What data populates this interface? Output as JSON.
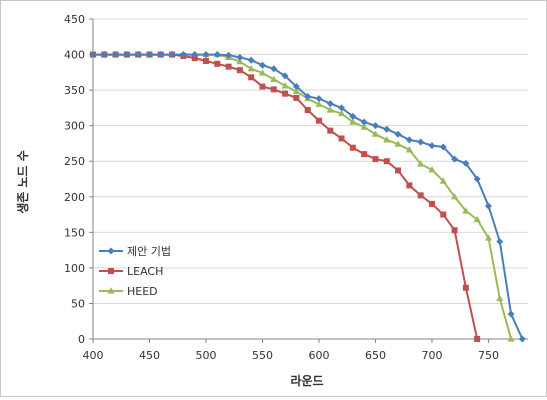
{
  "chart_data": {
    "type": "line",
    "xlabel": "라운드",
    "ylabel": "생존 노드 수",
    "xlim": [
      400,
      785
    ],
    "ylim": [
      0,
      450
    ],
    "x_ticks": [
      400,
      450,
      500,
      550,
      600,
      650,
      700,
      750
    ],
    "y_ticks": [
      0,
      50,
      100,
      150,
      200,
      250,
      300,
      350,
      400,
      450
    ],
    "grid": "horizontal",
    "legend": "left-middle",
    "series": [
      {
        "name": "제안 기법",
        "color": "#4a7ebb",
        "marker": "diamond",
        "x": [
          400,
          410,
          420,
          430,
          440,
          450,
          460,
          470,
          480,
          490,
          500,
          510,
          520,
          530,
          540,
          550,
          560,
          570,
          580,
          590,
          600,
          610,
          620,
          630,
          640,
          650,
          660,
          670,
          680,
          690,
          700,
          710,
          720,
          730,
          740,
          750,
          760,
          770,
          780
        ],
        "values": [
          400,
          400,
          400,
          400,
          400,
          400,
          400,
          400,
          400,
          400,
          400,
          400,
          399,
          396,
          392,
          385,
          380,
          370,
          355,
          341,
          338,
          331,
          325,
          313,
          305,
          300,
          295,
          288,
          280,
          277,
          272,
          270,
          253,
          247,
          225,
          187,
          137,
          35,
          0
        ]
      },
      {
        "name": "LEACH",
        "color": "#c0504d",
        "marker": "square",
        "x": [
          400,
          410,
          420,
          430,
          440,
          450,
          460,
          470,
          480,
          490,
          500,
          510,
          520,
          530,
          540,
          550,
          560,
          570,
          580,
          590,
          600,
          610,
          620,
          630,
          640,
          650,
          660,
          670,
          680,
          690,
          700,
          710,
          720,
          730,
          740
        ],
        "values": [
          400,
          400,
          400,
          400,
          400,
          400,
          400,
          400,
          398,
          395,
          391,
          387,
          383,
          378,
          368,
          355,
          351,
          345,
          339,
          322,
          307,
          293,
          282,
          269,
          260,
          253,
          250,
          237,
          216,
          202,
          190,
          175,
          153,
          72,
          0
        ]
      },
      {
        "name": "HEED",
        "color": "#9bbb59",
        "marker": "triangle",
        "x": [
          400,
          410,
          420,
          430,
          440,
          450,
          460,
          470,
          480,
          490,
          500,
          510,
          520,
          530,
          540,
          550,
          560,
          570,
          580,
          590,
          600,
          610,
          620,
          630,
          640,
          650,
          660,
          670,
          680,
          690,
          700,
          710,
          720,
          730,
          740,
          750,
          760,
          770
        ],
        "values": [
          400,
          400,
          400,
          400,
          400,
          400,
          400,
          400,
          400,
          400,
          400,
          400,
          396,
          390,
          380,
          374,
          365,
          356,
          348,
          338,
          330,
          322,
          317,
          305,
          298,
          288,
          280,
          274,
          266,
          246,
          238,
          222,
          200,
          180,
          168,
          142,
          57,
          0
        ]
      }
    ]
  }
}
